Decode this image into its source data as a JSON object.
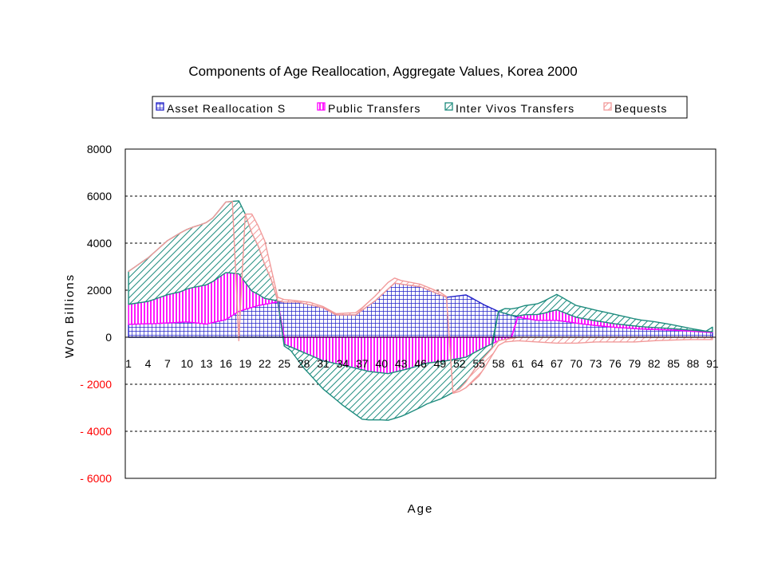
{
  "chart_data": {
    "type": "area",
    "stacked": true,
    "title": "Components of Age Reallocation, Aggregate Values, Korea 2000",
    "xlabel": "Age",
    "ylabel": "Won Billions",
    "ylim": [
      -6000,
      8000
    ],
    "yticks": [
      8000,
      6000,
      4000,
      2000,
      0,
      -2000,
      -4000,
      -6000
    ],
    "ytick_labels": [
      "8000",
      "6000",
      "4000",
      "2000",
      "0",
      "- 2000",
      "- 4000",
      "- 6000"
    ],
    "negative_tick_color": "#ff0000",
    "x_range": [
      1,
      91
    ],
    "xtick_labels": [
      "1",
      "4",
      "7",
      "10",
      "13",
      "16",
      "19",
      "22",
      "25",
      "28",
      "31",
      "34",
      "37",
      "40",
      "43",
      "46",
      "49",
      "52",
      "55",
      "58",
      "61",
      "64",
      "67",
      "70",
      "73",
      "76",
      "79",
      "82",
      "85",
      "88",
      "91"
    ],
    "grid": true,
    "legend_position": "top",
    "series": [
      {
        "name": "Asset Reallocation S",
        "color": "#1f1fc8",
        "pattern": "grid",
        "points": [
          [
            1,
            550
          ],
          [
            5,
            580
          ],
          [
            10,
            650
          ],
          [
            13,
            560
          ],
          [
            16,
            750
          ],
          [
            18,
            1100
          ],
          [
            21,
            1350
          ],
          [
            24,
            1500
          ],
          [
            27,
            1500
          ],
          [
            29,
            1380
          ],
          [
            31,
            1250
          ],
          [
            33,
            950
          ],
          [
            36,
            950
          ],
          [
            39,
            1550
          ],
          [
            42,
            2300
          ],
          [
            46,
            2150
          ],
          [
            50,
            1700
          ],
          [
            53,
            1800
          ],
          [
            56,
            1350
          ],
          [
            58,
            1100
          ],
          [
            61,
            850
          ],
          [
            64,
            720
          ],
          [
            67,
            720
          ],
          [
            70,
            600
          ],
          [
            73,
            500
          ],
          [
            76,
            420
          ],
          [
            80,
            350
          ],
          [
            85,
            300
          ],
          [
            88,
            250
          ],
          [
            90,
            220
          ],
          [
            91,
            200
          ]
        ]
      },
      {
        "name": "Public Transfers",
        "color": "#ff00ff",
        "pattern": "vertical",
        "points": [
          [
            1,
            850
          ],
          [
            4,
            950
          ],
          [
            7,
            1200
          ],
          [
            9,
            1300
          ],
          [
            11,
            1500
          ],
          [
            14,
            1750
          ],
          [
            16,
            2000
          ],
          [
            18,
            1600
          ],
          [
            20,
            700
          ],
          [
            22,
            250
          ],
          [
            24,
            50
          ],
          [
            25,
            -300
          ],
          [
            28,
            -650
          ],
          [
            31,
            -1000
          ],
          [
            35,
            -1250
          ],
          [
            38,
            -1450
          ],
          [
            41,
            -1550
          ],
          [
            44,
            -1350
          ],
          [
            47,
            -1100
          ],
          [
            50,
            -1000
          ],
          [
            53,
            -850
          ],
          [
            55,
            -550
          ],
          [
            58,
            -150
          ],
          [
            60,
            -50
          ],
          [
            62,
            150
          ],
          [
            65,
            300
          ],
          [
            67,
            450
          ],
          [
            70,
            250
          ],
          [
            73,
            200
          ],
          [
            76,
            150
          ],
          [
            80,
            100
          ],
          [
            85,
            60
          ],
          [
            91,
            30
          ]
        ]
      },
      {
        "name": "Inter Vivos Transfers",
        "color": "#1e8c7e",
        "pattern": "diagonal",
        "points": [
          [
            1,
            1400
          ],
          [
            3,
            1700
          ],
          [
            5,
            2000
          ],
          [
            7,
            2300
          ],
          [
            9,
            2500
          ],
          [
            12,
            2600
          ],
          [
            14,
            2700
          ],
          [
            16,
            3000
          ],
          [
            18,
            3100
          ],
          [
            19,
            2900
          ],
          [
            21,
            2050
          ],
          [
            23,
            850
          ],
          [
            24,
            0
          ],
          [
            26,
            -150
          ],
          [
            28,
            -650
          ],
          [
            31,
            -1200
          ],
          [
            34,
            -1700
          ],
          [
            37,
            -2100
          ],
          [
            40,
            -2000
          ],
          [
            43,
            -1950
          ],
          [
            46,
            -1800
          ],
          [
            49,
            -1600
          ],
          [
            52,
            -1300
          ],
          [
            55,
            -550
          ],
          [
            57,
            -200
          ],
          [
            59,
            200
          ],
          [
            61,
            350
          ],
          [
            64,
            450
          ],
          [
            67,
            650
          ],
          [
            70,
            500
          ],
          [
            73,
            450
          ],
          [
            76,
            400
          ],
          [
            79,
            300
          ],
          [
            82,
            250
          ],
          [
            85,
            160
          ],
          [
            88,
            60
          ],
          [
            90,
            0
          ],
          [
            91,
            200
          ]
        ]
      },
      {
        "name": "Bequests",
        "color": "#f29a9a",
        "pattern": "diagonal-light",
        "points": [
          [
            18,
            -150
          ],
          [
            19,
            0
          ],
          [
            20,
            800
          ],
          [
            21,
            850
          ],
          [
            22,
            1000
          ],
          [
            23,
            450
          ],
          [
            24,
            150
          ],
          [
            25,
            100
          ],
          [
            27,
            50
          ],
          [
            29,
            100
          ],
          [
            31,
            50
          ],
          [
            33,
            50
          ],
          [
            35,
            80
          ],
          [
            37,
            100
          ],
          [
            39,
            200
          ],
          [
            41,
            280
          ],
          [
            43,
            150
          ],
          [
            46,
            100
          ],
          [
            49,
            100
          ],
          [
            52,
            -100
          ],
          [
            54,
            -400
          ],
          [
            55,
            -550
          ],
          [
            56,
            -450
          ],
          [
            57,
            -300
          ],
          [
            59,
            -100
          ],
          [
            61,
            -150
          ],
          [
            64,
            -200
          ],
          [
            67,
            -250
          ],
          [
            70,
            -250
          ],
          [
            73,
            -200
          ],
          [
            76,
            -200
          ],
          [
            79,
            -200
          ],
          [
            82,
            -150
          ],
          [
            85,
            -120
          ],
          [
            88,
            -100
          ],
          [
            91,
            -100
          ]
        ]
      }
    ]
  }
}
